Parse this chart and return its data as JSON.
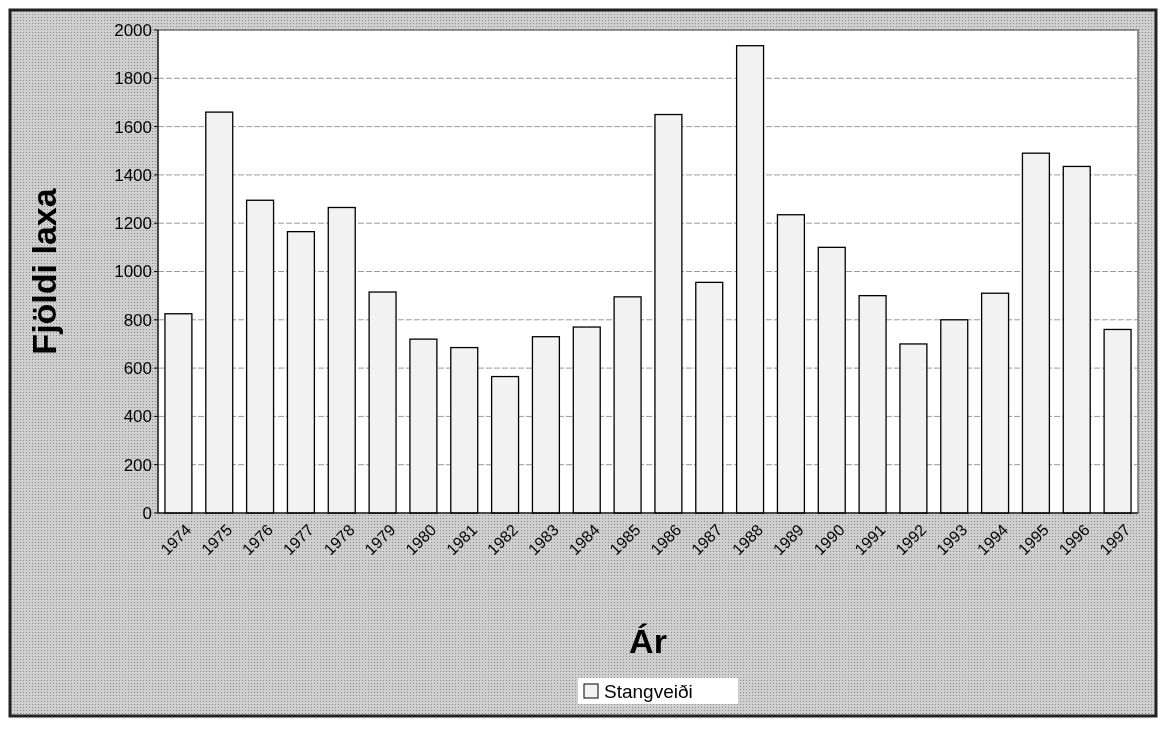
{
  "chart_data": {
    "type": "bar",
    "xlabel": "Ár",
    "ylabel": "Fjöldi laxa",
    "categories": [
      "1974",
      "1975",
      "1976",
      "1977",
      "1978",
      "1979",
      "1980",
      "1981",
      "1982",
      "1983",
      "1984",
      "1985",
      "1986",
      "1987",
      "1988",
      "1989",
      "1990",
      "1991",
      "1992",
      "1993",
      "1994",
      "1995",
      "1996",
      "1997"
    ],
    "series": [
      {
        "name": "Stangveiði",
        "color": "#f2f2f2",
        "values": [
          825,
          1660,
          1295,
          1165,
          1265,
          915,
          720,
          685,
          565,
          730,
          770,
          895,
          1650,
          955,
          1935,
          1235,
          1100,
          900,
          700,
          800,
          910,
          1490,
          1435,
          760
        ]
      }
    ],
    "ylim": [
      0,
      2000
    ],
    "yticks": [
      0,
      200,
      400,
      600,
      800,
      1000,
      1200,
      1400,
      1600,
      1800,
      2000
    ],
    "grid": "y",
    "legend": "bottom"
  }
}
